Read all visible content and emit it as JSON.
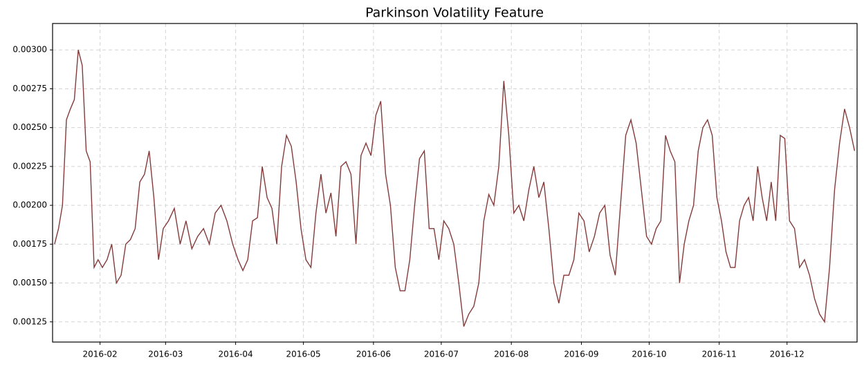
{
  "chart_data": {
    "type": "line",
    "title": "Parkinson Volatility Feature",
    "x": [
      "2016-01",
      "2016-01",
      "2016-01",
      "2016-01",
      "2016-01",
      "2016-01",
      "2016-01",
      "2016-01",
      "2016-01",
      "2016-01",
      "2016-01",
      "2016-01",
      "2016-02",
      "2016-02",
      "2016-02",
      "2016-02",
      "2016-02",
      "2016-02",
      "2016-02",
      "2016-02",
      "2016-02",
      "2016-02",
      "2016-02",
      "2016-02",
      "2016-02",
      "2016-02",
      "2016-03",
      "2016-03",
      "2016-03",
      "2016-03",
      "2016-03",
      "2016-03",
      "2016-03",
      "2016-03",
      "2016-03",
      "2016-03",
      "2016-03",
      "2016-03",
      "2016-04",
      "2016-04",
      "2016-04",
      "2016-04",
      "2016-04",
      "2016-04",
      "2016-04",
      "2016-04",
      "2016-04",
      "2016-04",
      "2016-04",
      "2016-04",
      "2016-04",
      "2016-04",
      "2016-05",
      "2016-05",
      "2016-05",
      "2016-05",
      "2016-05",
      "2016-05",
      "2016-05",
      "2016-05",
      "2016-05",
      "2016-05",
      "2016-05",
      "2016-05",
      "2016-05",
      "2016-05",
      "2016-06",
      "2016-06",
      "2016-06",
      "2016-06",
      "2016-06",
      "2016-06",
      "2016-06",
      "2016-06",
      "2016-06",
      "2016-06",
      "2016-06",
      "2016-06",
      "2016-06",
      "2016-06",
      "2016-07",
      "2016-07",
      "2016-07",
      "2016-07",
      "2016-07",
      "2016-07",
      "2016-07",
      "2016-07",
      "2016-07",
      "2016-07",
      "2016-07",
      "2016-07",
      "2016-07",
      "2016-07",
      "2016-08",
      "2016-08",
      "2016-08",
      "2016-08",
      "2016-08",
      "2016-08",
      "2016-08",
      "2016-08",
      "2016-08",
      "2016-08",
      "2016-08",
      "2016-08",
      "2016-08",
      "2016-08",
      "2016-09",
      "2016-09",
      "2016-09",
      "2016-09",
      "2016-09",
      "2016-09",
      "2016-09",
      "2016-09",
      "2016-09",
      "2016-09",
      "2016-09",
      "2016-09",
      "2016-09",
      "2016-10",
      "2016-10",
      "2016-10",
      "2016-10",
      "2016-10",
      "2016-10",
      "2016-10",
      "2016-10",
      "2016-10",
      "2016-10",
      "2016-10",
      "2016-10",
      "2016-10",
      "2016-10",
      "2016-10",
      "2016-11",
      "2016-11",
      "2016-11",
      "2016-11",
      "2016-11",
      "2016-11",
      "2016-11",
      "2016-11",
      "2016-11",
      "2016-11",
      "2016-11",
      "2016-11",
      "2016-11",
      "2016-11",
      "2016-11",
      "2016-12",
      "2016-12",
      "2016-12",
      "2016-12",
      "2016-12",
      "2016-12",
      "2016-12",
      "2016-12",
      "2016-12",
      "2016-12",
      "2016-12",
      "2016-12",
      "2016-12",
      "2016-12"
    ],
    "series": [
      {
        "color": "#833a3a",
        "values": [
          0.00175,
          0.00185,
          0.002,
          0.00255,
          0.00262,
          0.00268,
          0.003,
          0.0029,
          0.00235,
          0.00228,
          0.0016,
          0.00165,
          0.0016,
          0.00165,
          0.00175,
          0.0015,
          0.00155,
          0.00175,
          0.00178,
          0.00185,
          0.00215,
          0.0022,
          0.00235,
          0.00205,
          0.00165,
          0.00185,
          0.0019,
          0.00198,
          0.00175,
          0.0019,
          0.00172,
          0.0018,
          0.00185,
          0.00175,
          0.00195,
          0.002,
          0.0019,
          0.00175,
          0.00165,
          0.00158,
          0.00165,
          0.0019,
          0.00192,
          0.00225,
          0.00205,
          0.00198,
          0.00175,
          0.00225,
          0.00245,
          0.00238,
          0.00215,
          0.00185,
          0.00165,
          0.0016,
          0.00195,
          0.0022,
          0.00195,
          0.00208,
          0.0018,
          0.00225,
          0.00228,
          0.0022,
          0.00175,
          0.00232,
          0.0024,
          0.00232,
          0.00258,
          0.00267,
          0.0022,
          0.002,
          0.0016,
          0.00145,
          0.00145,
          0.00165,
          0.002,
          0.0023,
          0.00235,
          0.00185,
          0.00185,
          0.00165,
          0.0019,
          0.00185,
          0.00175,
          0.0015,
          0.00122,
          0.0013,
          0.00135,
          0.0015,
          0.0019,
          0.00207,
          0.002,
          0.00225,
          0.0028,
          0.00245,
          0.00195,
          0.002,
          0.0019,
          0.0021,
          0.00225,
          0.00205,
          0.00215,
          0.00185,
          0.0015,
          0.00137,
          0.00155,
          0.00155,
          0.00165,
          0.00195,
          0.0019,
          0.0017,
          0.0018,
          0.00195,
          0.002,
          0.00168,
          0.00155,
          0.002,
          0.00245,
          0.00255,
          0.0024,
          0.0021,
          0.0018,
          0.00175,
          0.00185,
          0.0019,
          0.00245,
          0.00235,
          0.00228,
          0.0015,
          0.00175,
          0.0019,
          0.002,
          0.00235,
          0.0025,
          0.00255,
          0.00245,
          0.00205,
          0.0019,
          0.0017,
          0.0016,
          0.0016,
          0.0019,
          0.002,
          0.00205,
          0.0019,
          0.00225,
          0.00205,
          0.0019,
          0.00215,
          0.0019,
          0.00245,
          0.00243,
          0.0019,
          0.00185,
          0.0016,
          0.00165,
          0.00155,
          0.0014,
          0.0013,
          0.00125,
          0.0016,
          0.0021,
          0.0024,
          0.00262,
          0.0025,
          0.00235
        ]
      }
    ],
    "xticks": [
      "2016-02",
      "2016-03",
      "2016-04",
      "2016-05",
      "2016-06",
      "2016-07",
      "2016-08",
      "2016-09",
      "2016-10",
      "2016-11",
      "2016-12"
    ],
    "ylim": [
      0.00112,
      0.00317
    ],
    "yticks": [
      0.00125,
      {
        "value": 0.0015,
        "label": "0.00150"
      },
      0.00175,
      {
        "value": 0.002,
        "label": "0.00200"
      },
      0.00225,
      {
        "value": 0.0025,
        "label": "0.00250"
      },
      0.00275,
      {
        "value": 0.003,
        "label": "0.00300"
      }
    ],
    "grid": true
  }
}
